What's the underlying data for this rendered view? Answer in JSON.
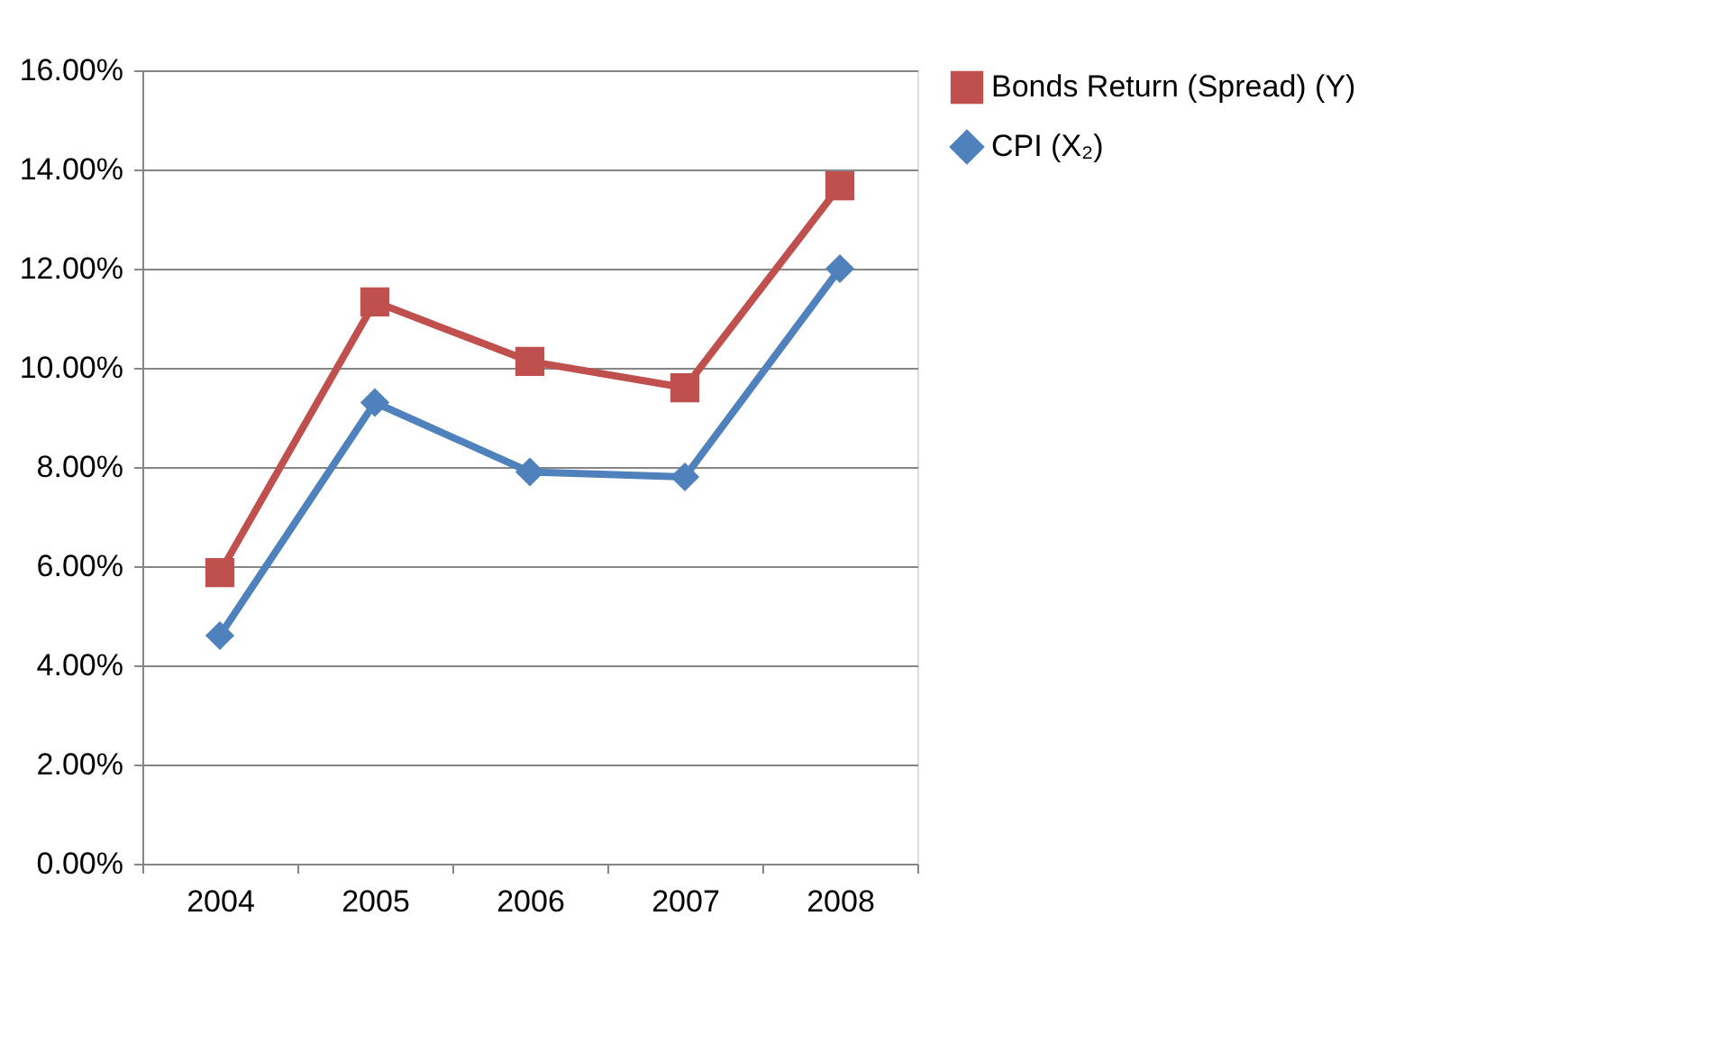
{
  "chart_data": {
    "type": "line",
    "categories": [
      "2004",
      "2005",
      "2006",
      "2007",
      "2008"
    ],
    "series": [
      {
        "name": "Bonds Return (Spread) (Y)",
        "color": "#c0504d",
        "marker": "square",
        "values": [
          5.87,
          11.33,
          10.13,
          9.6,
          13.67
        ]
      },
      {
        "name": "CPI (X₂)",
        "color": "#4f81bd",
        "marker": "diamond",
        "values": [
          4.6,
          9.3,
          7.9,
          7.8,
          12.0
        ]
      }
    ],
    "ylim": [
      0,
      16
    ],
    "yticks": [
      {
        "value": 0,
        "label": "0.00%"
      },
      {
        "value": 2,
        "label": "2.00%"
      },
      {
        "value": 4,
        "label": "4.00%"
      },
      {
        "value": 6,
        "label": "6.00%"
      },
      {
        "value": 8,
        "label": "8.00%"
      },
      {
        "value": 10,
        "label": "10.00%"
      },
      {
        "value": 12,
        "label": "12.00%"
      },
      {
        "value": 14,
        "label": "14.00%"
      },
      {
        "value": 16,
        "label": "16.00%"
      }
    ],
    "grid": "y",
    "legend": "right",
    "line_style": "solid"
  }
}
